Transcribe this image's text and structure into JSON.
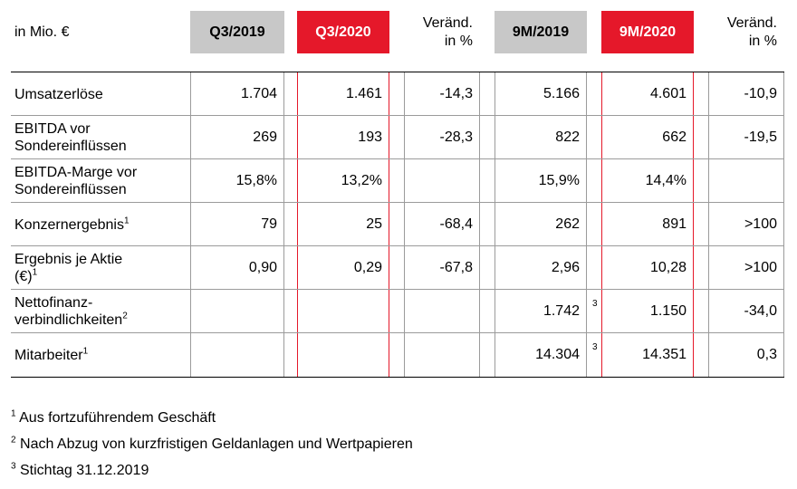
{
  "header": {
    "unit": "in Mio. €",
    "q3_2019": "Q3/2019",
    "q3_2020": "Q3/2020",
    "change_q3_line1": "Veränd.",
    "change_q3_line2": "in %",
    "m9_2019": "9M/2019",
    "m9_2020": "9M/2020",
    "change_9m_line1": "Veränd.",
    "change_9m_line2": "in %"
  },
  "rows": [
    {
      "label_line1": "Umsatzerlöse",
      "label_line2": "",
      "sup": "",
      "q3_2019": "1.704",
      "q3_2020": "1.461",
      "chg_q3": "-14,3",
      "m9_2019": "5.166",
      "mark": "",
      "m9_2020": "4.601",
      "chg_9m": "-10,9"
    },
    {
      "label_line1": "EBITDA vor",
      "label_line2": "Sondereinflüssen",
      "sup": "",
      "q3_2019": "269",
      "q3_2020": "193",
      "chg_q3": "-28,3",
      "m9_2019": "822",
      "mark": "",
      "m9_2020": "662",
      "chg_9m": "-19,5"
    },
    {
      "label_line1": "EBITDA-Marge vor",
      "label_line2": "Sondereinflüssen",
      "sup": "",
      "q3_2019": "15,8%",
      "q3_2020": "13,2%",
      "chg_q3": "",
      "m9_2019": "15,9%",
      "mark": "",
      "m9_2020": "14,4%",
      "chg_9m": ""
    },
    {
      "label_line1": "Konzernergebnis",
      "label_line2": "",
      "sup": "1",
      "q3_2019": "79",
      "q3_2020": "25",
      "chg_q3": "-68,4",
      "m9_2019": "262",
      "mark": "",
      "m9_2020": "891",
      "chg_9m": ">100"
    },
    {
      "label_line1": "Ergebnis je Aktie",
      "label_line2": "(€)",
      "sup": "1",
      "q3_2019": "0,90",
      "q3_2020": "0,29",
      "chg_q3": "-67,8",
      "m9_2019": "2,96",
      "mark": "",
      "m9_2020": "10,28",
      "chg_9m": ">100"
    },
    {
      "label_line1": "Nettofinanz-",
      "label_line2": "verbindlichkeiten",
      "sup": "2",
      "q3_2019": "",
      "q3_2020": "",
      "chg_q3": "",
      "m9_2019": "1.742",
      "mark": "3",
      "m9_2020": "1.150",
      "chg_9m": "-34,0"
    },
    {
      "label_line1": "Mitarbeiter",
      "label_line2": "",
      "sup": "1",
      "q3_2019": "",
      "q3_2020": "",
      "chg_q3": "",
      "m9_2019": "14.304",
      "mark": "3",
      "m9_2020": "14.351",
      "chg_9m": "0,3"
    }
  ],
  "footnotes": [
    {
      "num": "1",
      "text": " Aus fortzuführendem Geschäft"
    },
    {
      "num": "2",
      "text": " Nach Abzug von kurzfristigen Geldanlagen und Wertpapieren"
    },
    {
      "num": "3",
      "text": " Stichtag 31.12.2019"
    }
  ],
  "colors": {
    "accent_red": "#e5182a",
    "header_gray": "#c8c8c8",
    "rule_gray": "#9b9b9b"
  }
}
